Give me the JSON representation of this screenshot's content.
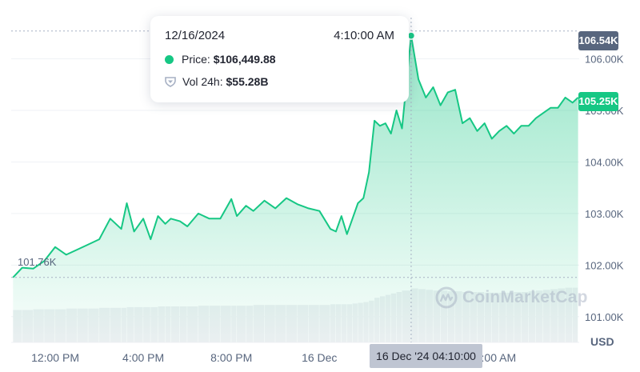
{
  "colors": {
    "line": "#16c784",
    "volume": "#eef0f3",
    "grid": "#eff2f5",
    "axis_text": "#58667e",
    "max_tag": "#58667e",
    "current_tag": "#16c784"
  },
  "tooltip": {
    "date": "12/16/2024",
    "time": "4:10:00 AM",
    "price_label": "Price:",
    "price_value": "$106,449.88",
    "volume_label": "Vol 24h:",
    "volume_value": "$55.28B",
    "price_icon": "green-dot-icon",
    "volume_icon": "shield-icon"
  },
  "axis": {
    "currency": "USD",
    "max_tag": "106.54K",
    "current_tag": "105.25K",
    "first_price_label": "101.76K",
    "hover_x_label": "16 Dec '24 04:10:00"
  },
  "watermark": {
    "text": "CoinMarketCap",
    "icon": "coinmarketcap-logo-icon"
  },
  "chart_data": {
    "type": "area",
    "title": "",
    "xlabel": "",
    "ylabel": "USD",
    "ylim": [
      100500,
      106800
    ],
    "y_ticks": [
      101000,
      102000,
      103000,
      104000,
      105000,
      106000
    ],
    "y_tick_labels": [
      "101.00K",
      "102.00K",
      "103.00K",
      "104.00K",
      "105.00K",
      "106.00K"
    ],
    "x_ticks": [
      "2024-12-15 12:00",
      "2024-12-15 16:00",
      "2024-12-15 20:00",
      "2024-12-16 00:00",
      "2024-12-16 08:00"
    ],
    "x_tick_labels": [
      "12:00 PM",
      "4:00 PM",
      "8:00 PM",
      "16 Dec",
      "8:00 AM"
    ],
    "grid": true,
    "highlighted_point": {
      "x": "2024-12-16 04:10",
      "y": 106449.88
    },
    "series": [
      {
        "name": "Price",
        "x": [
          "2024-12-15 10:05",
          "2024-12-15 10:30",
          "2024-12-15 11:00",
          "2024-12-15 11:30",
          "2024-12-15 12:00",
          "2024-12-15 12:30",
          "2024-12-15 13:00",
          "2024-12-15 13:30",
          "2024-12-15 14:00",
          "2024-12-15 14:30",
          "2024-12-15 15:00",
          "2024-12-15 15:15",
          "2024-12-15 15:35",
          "2024-12-15 16:00",
          "2024-12-15 16:20",
          "2024-12-15 16:40",
          "2024-12-15 17:00",
          "2024-12-15 17:15",
          "2024-12-15 17:40",
          "2024-12-15 18:00",
          "2024-12-15 18:30",
          "2024-12-15 19:00",
          "2024-12-15 19:30",
          "2024-12-15 20:00",
          "2024-12-15 20:15",
          "2024-12-15 20:40",
          "2024-12-15 21:00",
          "2024-12-15 21:30",
          "2024-12-15 22:00",
          "2024-12-15 22:30",
          "2024-12-15 23:00",
          "2024-12-15 23:30",
          "2024-12-16 00:00",
          "2024-12-16 00:30",
          "2024-12-16 00:45",
          "2024-12-16 01:00",
          "2024-12-16 01:15",
          "2024-12-16 01:30",
          "2024-12-16 01:45",
          "2024-12-16 02:00",
          "2024-12-16 02:15",
          "2024-12-16 02:30",
          "2024-12-16 02:45",
          "2024-12-16 03:00",
          "2024-12-16 03:15",
          "2024-12-16 03:30",
          "2024-12-16 03:45",
          "2024-12-16 04:10",
          "2024-12-16 04:30",
          "2024-12-16 04:50",
          "2024-12-16 05:10",
          "2024-12-16 05:30",
          "2024-12-16 05:50",
          "2024-12-16 06:10",
          "2024-12-16 06:30",
          "2024-12-16 06:50",
          "2024-12-16 07:10",
          "2024-12-16 07:30",
          "2024-12-16 07:50",
          "2024-12-16 08:10",
          "2024-12-16 08:30",
          "2024-12-16 08:50",
          "2024-12-16 09:10",
          "2024-12-16 09:30",
          "2024-12-16 09:50",
          "2024-12-16 10:10",
          "2024-12-16 10:30",
          "2024-12-16 10:50",
          "2024-12-16 11:10",
          "2024-12-16 11:30",
          "2024-12-16 11:45"
        ],
        "values": [
          101760,
          101950,
          101930,
          102080,
          102350,
          102200,
          102300,
          102400,
          102500,
          102900,
          102700,
          103200,
          102650,
          102900,
          102500,
          102950,
          102800,
          102900,
          102850,
          102750,
          103000,
          102900,
          102900,
          103280,
          102950,
          103150,
          103050,
          103250,
          103100,
          103300,
          103180,
          103100,
          103050,
          102700,
          102650,
          102950,
          102600,
          102900,
          103200,
          103300,
          103800,
          104800,
          104700,
          104750,
          104550,
          105000,
          104650,
          106449,
          105600,
          105250,
          105450,
          105100,
          105350,
          105400,
          104750,
          104850,
          104600,
          104750,
          104450,
          104600,
          104700,
          104550,
          104700,
          104700,
          104850,
          104950,
          105050,
          105050,
          105250,
          105150,
          105250
        ]
      },
      {
        "name": "Vol 24h",
        "values_scale": "relative",
        "values": [
          0.45,
          0.45,
          0.46,
          0.46,
          0.46,
          0.47,
          0.47,
          0.47,
          0.48,
          0.48,
          0.48,
          0.49,
          0.49,
          0.49,
          0.49,
          0.5,
          0.5,
          0.5,
          0.5,
          0.5,
          0.51,
          0.51,
          0.51,
          0.51,
          0.51,
          0.51,
          0.52,
          0.52,
          0.52,
          0.52,
          0.52,
          0.52,
          0.52,
          0.53,
          0.53,
          0.53,
          0.53,
          0.54,
          0.55,
          0.56,
          0.58,
          0.62,
          0.64,
          0.66,
          0.68,
          0.7,
          0.72,
          0.75,
          0.74,
          0.73,
          0.72,
          0.72,
          0.71,
          0.71,
          0.7,
          0.7,
          0.7,
          0.69,
          0.69,
          0.69,
          0.69,
          0.7,
          0.7,
          0.71,
          0.72,
          0.73,
          0.74,
          0.75,
          0.76,
          0.76,
          0.77
        ]
      }
    ]
  }
}
